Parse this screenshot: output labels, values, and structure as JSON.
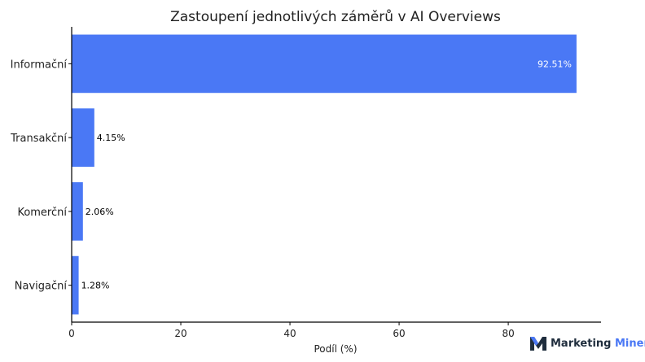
{
  "chart_data": {
    "type": "bar",
    "orientation": "horizontal",
    "title": "Zastoupení jednotlivých záměrů v AI Overviews",
    "xlabel": "Podíl (%)",
    "ylabel": "",
    "categories": [
      "Informační",
      "Transakční",
      "Komerční",
      "Navigační"
    ],
    "values": [
      92.51,
      4.15,
      2.06,
      1.28
    ],
    "data_labels": [
      "92.51%",
      "4.15%",
      "2.06%",
      "1.28%"
    ],
    "xlim": [
      0,
      97
    ],
    "xticks": [
      0,
      20,
      40,
      60,
      80
    ],
    "grid": false,
    "bar_color": "#4a78f5"
  },
  "branding": {
    "logo_word1": "Marketing",
    "logo_word2": "Miner",
    "logo_icon": "marketing-miner-m-icon",
    "logo_color": "#4a78f5",
    "logo_dark": "#1f2d3d"
  }
}
